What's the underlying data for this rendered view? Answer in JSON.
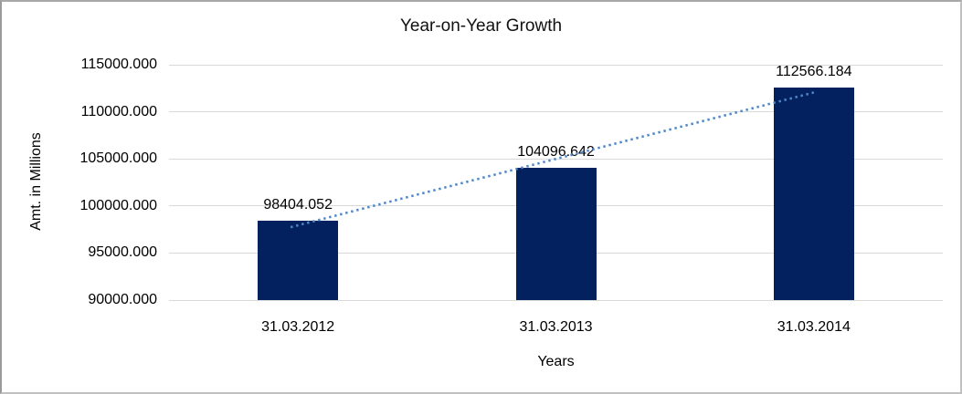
{
  "chart_data": {
    "type": "bar",
    "title": "Year-on-Year Growth",
    "xlabel": "Years",
    "ylabel": "Amt. in Millions",
    "categories": [
      "31.03.2012",
      "31.03.2013",
      "31.03.2014"
    ],
    "values": [
      98404.052,
      104096.642,
      112566.184
    ],
    "value_labels": [
      "98404.052",
      "104096.642",
      "112566.184"
    ],
    "ylim": [
      90000,
      115000
    ],
    "yticks": [
      {
        "value": 90000,
        "label": "90000.000"
      },
      {
        "value": 95000,
        "label": "95000.000"
      },
      {
        "value": 100000,
        "label": "100000.000"
      },
      {
        "value": 105000,
        "label": "105000.000"
      },
      {
        "value": 110000,
        "label": "110000.000"
      },
      {
        "value": 115000,
        "label": "115000.000"
      }
    ],
    "grid": true,
    "legend": false,
    "trendline": {
      "type": "linear",
      "style": "dotted"
    },
    "colors": {
      "bar": "#04215f",
      "trendline": "#4f86c6",
      "gridline": "#d9d9d9",
      "text": "#000000",
      "border": "#c0c0c0"
    }
  }
}
